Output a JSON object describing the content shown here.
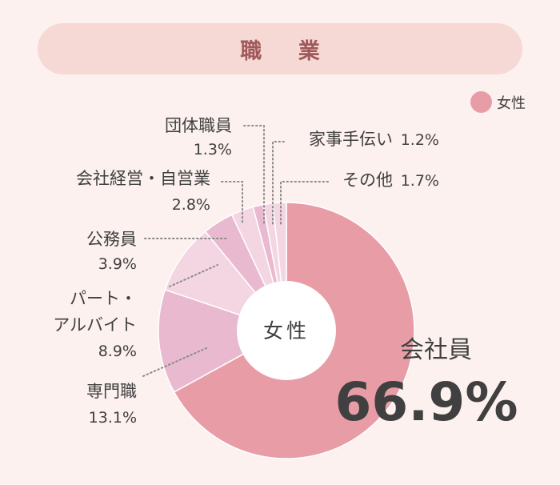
{
  "header": {
    "title": "職 業"
  },
  "legend": {
    "label": "女性",
    "color": "#e89da6"
  },
  "chart_data": {
    "type": "pie",
    "title": "職 業",
    "center_label": "女性",
    "series_name": "女性",
    "slices": [
      {
        "label": "会社員",
        "value": 66.9,
        "pct_text": "66.9%",
        "color": "#e89da6"
      },
      {
        "label": "専門職",
        "value": 13.1,
        "pct_text": "13.1%",
        "color": "#e9b9d0"
      },
      {
        "label": "パート・アルバイト",
        "label_lines": [
          "パート・",
          "アルバイト"
        ],
        "value": 8.9,
        "pct_text": "8.9%",
        "color": "#f4d6e3"
      },
      {
        "label": "公務員",
        "value": 3.9,
        "pct_text": "3.9%",
        "color": "#e9b9d0"
      },
      {
        "label": "会社経営・自営業",
        "value": 2.8,
        "pct_text": "2.8%",
        "color": "#f4d6e3"
      },
      {
        "label": "団体職員",
        "value": 1.3,
        "pct_text": "1.3%",
        "color": "#e9b9d0"
      },
      {
        "label": "家事手伝い",
        "value": 1.2,
        "pct_text": "1.2%",
        "color": "#f4d6e3"
      },
      {
        "label": "その他",
        "value": 1.7,
        "pct_text": "1.7%",
        "color": "#f4d6e3"
      }
    ]
  }
}
